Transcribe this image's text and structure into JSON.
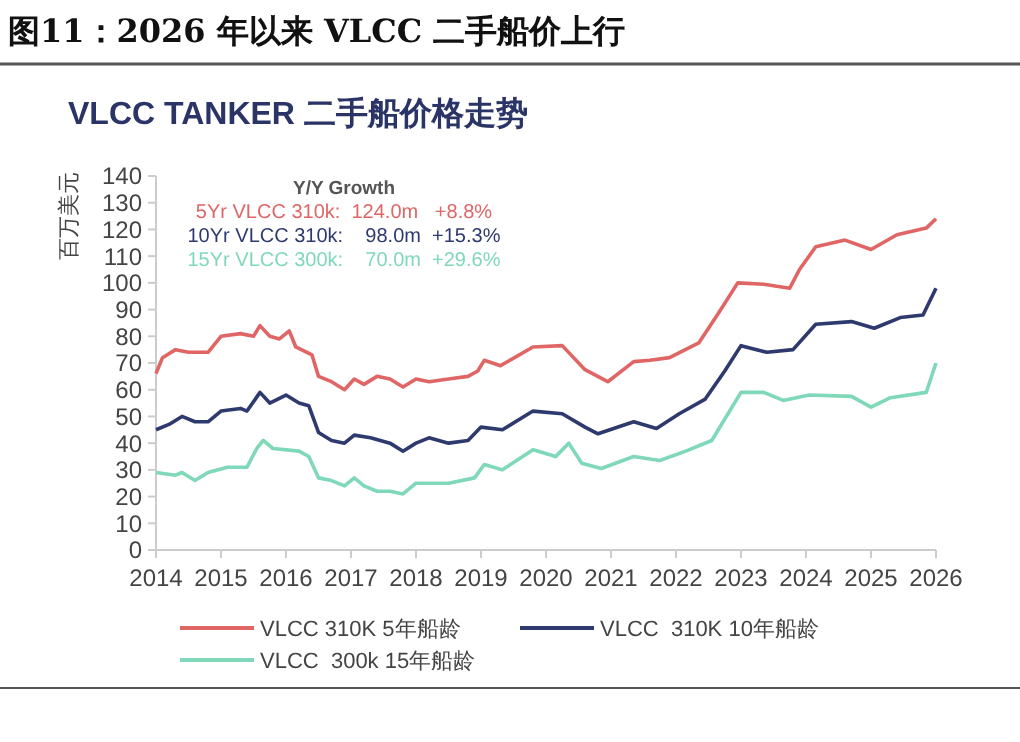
{
  "chart_data": {
    "type": "line",
    "title": "图11：2026 年以来 VLCC 二手船价上行",
    "subtitle": "VLCC TANKER 二手船价格走势",
    "ylabel": "百万美元",
    "annotations": [
      "Y/Y Growth",
      "5Yr VLCC 310k:  124.0m   +8.8%",
      "10Yr VLCC 310k:    98.0m  +15.3%",
      "15Yr VLCC 300k:    70.0m  +29.6%"
    ],
    "xlim": [
      2014,
      2026
    ],
    "xticks": [
      2014,
      2015,
      2016,
      2017,
      2018,
      2019,
      2020,
      2021,
      2022,
      2023,
      2024,
      2025,
      2026
    ],
    "ylim": [
      0,
      140
    ],
    "yticks": [
      0,
      10,
      20,
      30,
      40,
      50,
      60,
      70,
      80,
      90,
      100,
      110,
      120,
      130,
      140
    ],
    "grid": false,
    "legend": "bottom",
    "marker": "none",
    "line_style": "solid",
    "series": [
      {
        "name": "VLCC 310K 5年船龄",
        "color": "#e06666",
        "x": [
          2014,
          2014.1,
          2014.3,
          2014.5,
          2014.8,
          2015,
          2015.3,
          2015.5,
          2015.6,
          2015.75,
          2015.9,
          2016.05,
          2016.15,
          2016.4,
          2016.5,
          2016.7,
          2016.9,
          2017.05,
          2017.2,
          2017.4,
          2017.6,
          2017.8,
          2018,
          2018.2,
          2018.5,
          2018.8,
          2018.95,
          2019.05,
          2019.3,
          2019.8,
          2020.25,
          2020.6,
          2020.95,
          2021.35,
          2021.6,
          2021.9,
          2022.35,
          2022.65,
          2022.95,
          2023.35,
          2023.75,
          2023.9,
          2024.15,
          2024.6,
          2025,
          2025.4,
          2025.85,
          2026
        ],
        "values": [
          66,
          72,
          75,
          74,
          74,
          80,
          81,
          80,
          84,
          80,
          79,
          82,
          76,
          73,
          65,
          63,
          60,
          64,
          62,
          65,
          64,
          61,
          64,
          63,
          64,
          65,
          67,
          71,
          69,
          76,
          76.5,
          67.5,
          63,
          70.5,
          71,
          72,
          77.5,
          88.5,
          100,
          99.5,
          98,
          105,
          113.5,
          116,
          112.5,
          118,
          120.5,
          124
        ]
      },
      {
        "name": "VLCC  310K 10年船龄",
        "color": "#2e3a6e",
        "x": [
          2014,
          2014.2,
          2014.4,
          2014.6,
          2014.8,
          2015,
          2015.3,
          2015.4,
          2015.6,
          2015.75,
          2016,
          2016.2,
          2016.35,
          2016.5,
          2016.7,
          2016.9,
          2017.05,
          2017.3,
          2017.6,
          2017.8,
          2018,
          2018.2,
          2018.5,
          2018.8,
          2019,
          2019.33,
          2019.8,
          2020.25,
          2020.6,
          2020.8,
          2021.35,
          2021.7,
          2022.05,
          2022.45,
          2022.75,
          2023,
          2023.4,
          2023.8,
          2024.15,
          2024.7,
          2025.05,
          2025.45,
          2025.8,
          2026
        ],
        "values": [
          45,
          47,
          50,
          48,
          48,
          52,
          53,
          52,
          59,
          55,
          58,
          55,
          54,
          44,
          41,
          40,
          43,
          42,
          40,
          37,
          40,
          42,
          40,
          41,
          46,
          45,
          52,
          51,
          46,
          43.5,
          48,
          45.5,
          51,
          56.5,
          67,
          76.5,
          74,
          75,
          84.5,
          85.5,
          83,
          87,
          88,
          98
        ]
      },
      {
        "name": "VLCC  300k 15年船龄",
        "color": "#7fd8b8",
        "x": [
          2014,
          2014.3,
          2014.4,
          2014.6,
          2014.8,
          2015.1,
          2015.4,
          2015.55,
          2015.65,
          2015.8,
          2016.2,
          2016.35,
          2016.5,
          2016.7,
          2016.9,
          2017.05,
          2017.2,
          2017.4,
          2017.6,
          2017.8,
          2018,
          2018.5,
          2018.9,
          2019.05,
          2019.33,
          2019.8,
          2020.15,
          2020.35,
          2020.55,
          2020.85,
          2021.35,
          2021.75,
          2022.15,
          2022.55,
          2022.8,
          2023,
          2023.35,
          2023.65,
          2024.05,
          2024.7,
          2025,
          2025.3,
          2025.85,
          2026
        ],
        "values": [
          29,
          28,
          29,
          26,
          29,
          31,
          31,
          38,
          41,
          38,
          37,
          35,
          27,
          26,
          24,
          27,
          24,
          22,
          22,
          21,
          25,
          25,
          27,
          32,
          30,
          37.5,
          35,
          40,
          32.5,
          30.5,
          35,
          33.5,
          37,
          41,
          51,
          59,
          59,
          56,
          58,
          57.5,
          53.5,
          57,
          59,
          70
        ]
      }
    ]
  }
}
